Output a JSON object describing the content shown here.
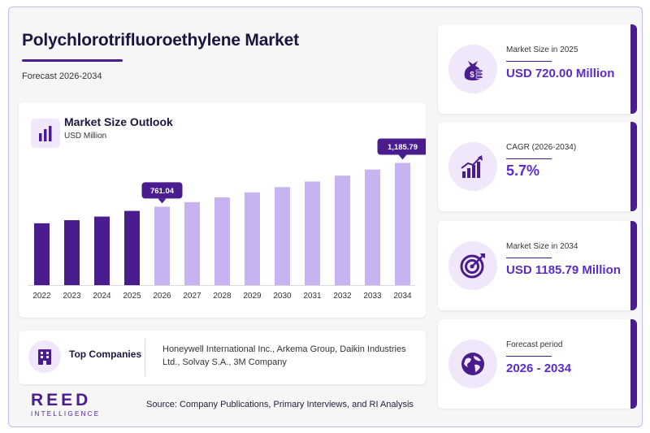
{
  "header": {
    "title": "Polychlorotrifluoroethylene Market",
    "subtitle": "Forecast 2026-2034"
  },
  "chart_card": {
    "icon": "bar-chart-icon",
    "title": "Market Size Outlook",
    "unit": "USD Million"
  },
  "chart_data": {
    "type": "bar",
    "title": "Market Size Outlook",
    "ylabel": "USD Million",
    "categories": [
      "2022",
      "2023",
      "2024",
      "2025",
      "2026",
      "2027",
      "2028",
      "2029",
      "2030",
      "2031",
      "2032",
      "2033",
      "2034"
    ],
    "values": [
      600,
      630,
      665,
      720,
      761.04,
      805,
      851,
      900,
      951,
      1005,
      1062,
      1121,
      1185.79
    ],
    "ylim": [
      0,
      1300
    ],
    "grid": false,
    "series_split": {
      "historical_until": "2025",
      "historical_color": "#4a1d8f",
      "forecast_color": "#c7b3ef"
    },
    "annotations": [
      {
        "category": "2026",
        "label": "761.04"
      },
      {
        "category": "2034",
        "label": "1,185.79"
      }
    ]
  },
  "companies": {
    "icon": "building-icon",
    "label": "Top Companies",
    "text": "Honeywell International Inc., Arkema Group, Daikin Industries Ltd., Solvay S.A., 3M Company"
  },
  "footer": {
    "logo_main": "REED",
    "logo_sub": "INTELLIGENCE",
    "source": "Source: Company Publications, Primary Interviews, and RI Analysis"
  },
  "stats": [
    {
      "icon": "money-bag-icon",
      "label": "Market Size in 2025",
      "value": "USD 720.00 Million"
    },
    {
      "icon": "growth-chart-icon",
      "label": "CAGR (2026-2034)",
      "value": "5.7%"
    },
    {
      "icon": "target-icon",
      "label": "Market Size in 2034",
      "value": "USD 1185.79 Million"
    },
    {
      "icon": "globe-icon",
      "label": "Forecast period",
      "value": "2026 - 2034"
    }
  ],
  "colors": {
    "accent": "#4a1d8f",
    "value_text": "#5b2cc9",
    "forecast_bar": "#c7b3ef",
    "icon_bg": "#f1e7fb"
  }
}
